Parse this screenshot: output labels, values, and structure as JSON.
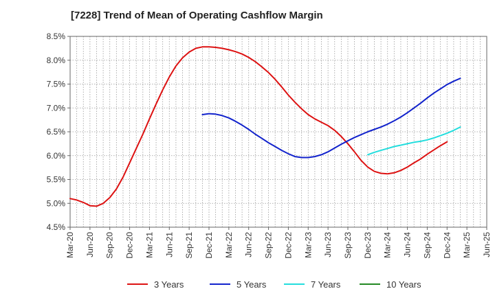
{
  "chart_data": {
    "type": "line",
    "title": "[7228]  Trend of Mean of Operating Cashflow Margin",
    "xlabel": "",
    "ylabel": "",
    "x_ticks": [
      "Mar-20",
      "Jun-20",
      "Sep-20",
      "Dec-20",
      "Mar-21",
      "Jun-21",
      "Sep-21",
      "Dec-21",
      "Mar-22",
      "Jun-22",
      "Sep-22",
      "Dec-22",
      "Mar-23",
      "Jun-23",
      "Sep-23",
      "Dec-23",
      "Mar-24",
      "Jun-24",
      "Sep-24",
      "Dec-24",
      "Mar-25",
      "Jun-25"
    ],
    "y_ticks": [
      "4.5%",
      "5.0%",
      "5.5%",
      "6.0%",
      "6.5%",
      "7.0%",
      "7.5%",
      "8.0%",
      "8.5%"
    ],
    "ylim": [
      4.5,
      8.5
    ],
    "grid": true,
    "legend_position": "bottom",
    "series": [
      {
        "name": "3 Years",
        "color": "#dd1111",
        "points": [
          [
            "Mar-20",
            5.1
          ],
          [
            "Apr-20",
            5.07
          ],
          [
            "May-20",
            5.02
          ],
          [
            "Jun-20",
            4.95
          ],
          [
            "Jul-20",
            4.94
          ],
          [
            "Aug-20",
            5.0
          ],
          [
            "Sep-20",
            5.12
          ],
          [
            "Oct-20",
            5.3
          ],
          [
            "Nov-20",
            5.55
          ],
          [
            "Dec-20",
            5.85
          ],
          [
            "Jan-21",
            6.15
          ],
          [
            "Feb-21",
            6.45
          ],
          [
            "Mar-21",
            6.77
          ],
          [
            "Apr-21",
            7.08
          ],
          [
            "May-21",
            7.38
          ],
          [
            "Jun-21",
            7.65
          ],
          [
            "Jul-21",
            7.88
          ],
          [
            "Aug-21",
            8.05
          ],
          [
            "Sep-21",
            8.17
          ],
          [
            "Oct-21",
            8.25
          ],
          [
            "Nov-21",
            8.28
          ],
          [
            "Dec-21",
            8.28
          ],
          [
            "Jan-22",
            8.27
          ],
          [
            "Feb-22",
            8.25
          ],
          [
            "Mar-22",
            8.22
          ],
          [
            "Apr-22",
            8.18
          ],
          [
            "May-22",
            8.13
          ],
          [
            "Jun-22",
            8.06
          ],
          [
            "Jul-22",
            7.97
          ],
          [
            "Aug-22",
            7.86
          ],
          [
            "Sep-22",
            7.74
          ],
          [
            "Oct-22",
            7.6
          ],
          [
            "Nov-22",
            7.44
          ],
          [
            "Dec-22",
            7.27
          ],
          [
            "Jan-23",
            7.12
          ],
          [
            "Feb-23",
            6.98
          ],
          [
            "Mar-23",
            6.86
          ],
          [
            "Apr-23",
            6.77
          ],
          [
            "May-23",
            6.7
          ],
          [
            "Jun-23",
            6.63
          ],
          [
            "Jul-23",
            6.53
          ],
          [
            "Aug-23",
            6.4
          ],
          [
            "Sep-23",
            6.25
          ],
          [
            "Oct-23",
            6.08
          ],
          [
            "Nov-23",
            5.9
          ],
          [
            "Dec-23",
            5.76
          ],
          [
            "Jan-24",
            5.67
          ],
          [
            "Feb-24",
            5.63
          ],
          [
            "Mar-24",
            5.62
          ],
          [
            "Apr-24",
            5.64
          ],
          [
            "May-24",
            5.69
          ],
          [
            "Jun-24",
            5.76
          ],
          [
            "Jul-24",
            5.85
          ],
          [
            "Aug-24",
            5.93
          ],
          [
            "Sep-24",
            6.03
          ],
          [
            "Oct-24",
            6.12
          ],
          [
            "Nov-24",
            6.21
          ],
          [
            "Dec-24",
            6.29
          ]
        ]
      },
      {
        "name": "5 Years",
        "color": "#1122cc",
        "points": [
          [
            "Nov-21",
            6.86
          ],
          [
            "Dec-21",
            6.88
          ],
          [
            "Jan-22",
            6.87
          ],
          [
            "Feb-22",
            6.84
          ],
          [
            "Mar-22",
            6.79
          ],
          [
            "Apr-22",
            6.72
          ],
          [
            "May-22",
            6.64
          ],
          [
            "Jun-22",
            6.55
          ],
          [
            "Jul-22",
            6.45
          ],
          [
            "Aug-22",
            6.36
          ],
          [
            "Sep-22",
            6.27
          ],
          [
            "Oct-22",
            6.19
          ],
          [
            "Nov-22",
            6.11
          ],
          [
            "Dec-22",
            6.04
          ],
          [
            "Jan-23",
            5.98
          ],
          [
            "Feb-23",
            5.96
          ],
          [
            "Mar-23",
            5.96
          ],
          [
            "Apr-23",
            5.98
          ],
          [
            "May-23",
            6.02
          ],
          [
            "Jun-23",
            6.08
          ],
          [
            "Jul-23",
            6.16
          ],
          [
            "Aug-23",
            6.24
          ],
          [
            "Sep-23",
            6.31
          ],
          [
            "Oct-23",
            6.38
          ],
          [
            "Nov-23",
            6.44
          ],
          [
            "Dec-23",
            6.5
          ],
          [
            "Jan-24",
            6.55
          ],
          [
            "Feb-24",
            6.6
          ],
          [
            "Mar-24",
            6.66
          ],
          [
            "Apr-24",
            6.73
          ],
          [
            "May-24",
            6.81
          ],
          [
            "Jun-24",
            6.9
          ],
          [
            "Jul-24",
            7.0
          ],
          [
            "Aug-24",
            7.1
          ],
          [
            "Sep-24",
            7.21
          ],
          [
            "Oct-24",
            7.31
          ],
          [
            "Nov-24",
            7.4
          ],
          [
            "Dec-24",
            7.49
          ],
          [
            "Jan-25",
            7.56
          ],
          [
            "Feb-25",
            7.62
          ]
        ]
      },
      {
        "name": "7 Years",
        "color": "#22dddd",
        "points": [
          [
            "Dec-23",
            6.02
          ],
          [
            "Jan-24",
            6.07
          ],
          [
            "Feb-24",
            6.11
          ],
          [
            "Mar-24",
            6.15
          ],
          [
            "Apr-24",
            6.19
          ],
          [
            "May-24",
            6.22
          ],
          [
            "Jun-24",
            6.25
          ],
          [
            "Jul-24",
            6.28
          ],
          [
            "Aug-24",
            6.3
          ],
          [
            "Sep-24",
            6.33
          ],
          [
            "Oct-24",
            6.37
          ],
          [
            "Nov-24",
            6.42
          ],
          [
            "Dec-24",
            6.47
          ],
          [
            "Jan-25",
            6.53
          ],
          [
            "Feb-25",
            6.6
          ]
        ]
      },
      {
        "name": "10 Years",
        "color": "#228822",
        "points": []
      }
    ]
  }
}
